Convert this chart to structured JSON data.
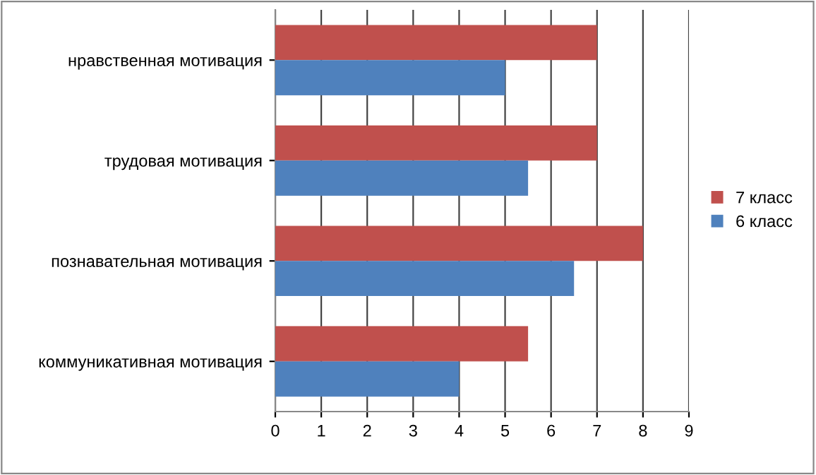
{
  "chart_data": {
    "type": "bar",
    "orientation": "horizontal",
    "categories": [
      "нравственная мотивация",
      "трудовая мотивация",
      "познавательная мотивация",
      "коммуникативная мотивация"
    ],
    "series": [
      {
        "name": "7 класс",
        "color": "#c0504d",
        "values": [
          7,
          7,
          8,
          5.5
        ]
      },
      {
        "name": "6 класс",
        "color": "#4f81bd",
        "values": [
          5,
          5.5,
          6.5,
          4
        ]
      }
    ],
    "xlim": [
      0,
      9
    ],
    "xticks": [
      0,
      1,
      2,
      3,
      4,
      5,
      6,
      7,
      8,
      9
    ],
    "grid": "x",
    "legend": "right"
  }
}
